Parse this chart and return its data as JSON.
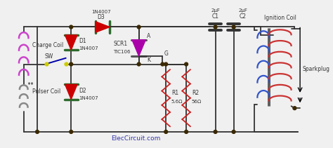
{
  "bg_color": "#f0f0f0",
  "wire_color": "#333333",
  "node_color": "#3a2800",
  "diode_red": "#cc0000",
  "diode_green_body": "#2d6a2d",
  "scr_color": "#aa00aa",
  "resistor_color": "#cc2222",
  "cap_color": "#333333",
  "coil_charge_color": "#cc44cc",
  "coil_primary_color": "#3355cc",
  "coil_secondary_color": "#cc3333",
  "text_color": "#333333",
  "credit_color": "#3333aa",
  "title_text": "ElecCircuit.com",
  "labels": {
    "D3": "D3",
    "D3_part": "1N4007",
    "D1": "D1",
    "D1_part": "1N4007",
    "D2": "D2",
    "D2_part": "1N4007",
    "SCR": "SCR1",
    "SCR_part": "TIC106",
    "R1": "R1",
    "R1_val": "5.6Ω",
    "R2": "R2",
    "R2_val": "56Ω",
    "C1": "C1",
    "C1_val": "2μF",
    "C2": "C2",
    "C2_val": "2μF",
    "SW": "SW",
    "A": "A",
    "K": "K",
    "G": "G",
    "charge_coil": "Charge Coil",
    "pulser_coil": "Pulser Coil",
    "ignition_coil": "Ignition Coil",
    "sparkplug": "Sparkplug"
  }
}
